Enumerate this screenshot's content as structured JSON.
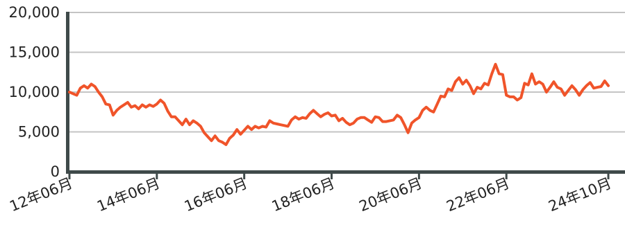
{
  "chart_data": {
    "type": "line",
    "title": "",
    "xlabel": "",
    "ylabel": "",
    "ylim": [
      0,
      20000
    ],
    "y_ticks": [
      {
        "value": 0,
        "label": "0"
      },
      {
        "value": 5000,
        "label": "5,000"
      },
      {
        "value": 10000,
        "label": "10,000"
      },
      {
        "value": 15000,
        "label": "15,000"
      },
      {
        "value": 20000,
        "label": "20,000"
      }
    ],
    "x_ticks": [
      {
        "month_index": 0,
        "label": "12年06月"
      },
      {
        "month_index": 24,
        "label": "14年06月"
      },
      {
        "month_index": 48,
        "label": "16年06月"
      },
      {
        "month_index": 72,
        "label": "18年06月"
      },
      {
        "month_index": 96,
        "label": "20年06月"
      },
      {
        "month_index": 120,
        "label": "22年06月"
      },
      {
        "month_index": 148,
        "label": "24年10月"
      }
    ],
    "grid": true,
    "series": [
      {
        "color": "#f0542a",
        "values": [
          10000,
          9800,
          9600,
          10500,
          10800,
          10500,
          11000,
          10700,
          10000,
          9400,
          8500,
          8400,
          7100,
          7700,
          8100,
          8400,
          8700,
          8100,
          8300,
          7900,
          8400,
          8100,
          8400,
          8200,
          8500,
          9000,
          8600,
          7600,
          6900,
          6900,
          6400,
          5900,
          6600,
          5900,
          6400,
          6100,
          5700,
          4900,
          4400,
          3900,
          4500,
          3900,
          3700,
          3400,
          4200,
          4600,
          5300,
          4700,
          5200,
          5700,
          5300,
          5700,
          5500,
          5700,
          5600,
          6400,
          6100,
          6000,
          5900,
          5800,
          5700,
          6500,
          6900,
          6600,
          6800,
          6700,
          7300,
          7700,
          7300,
          6900,
          7200,
          7400,
          7000,
          7100,
          6400,
          6700,
          6200,
          5900,
          6100,
          6600,
          6800,
          6800,
          6500,
          6200,
          6900,
          6800,
          6300,
          6300,
          6400,
          6500,
          7100,
          6800,
          5900,
          4900,
          6100,
          6500,
          6800,
          7700,
          8100,
          7700,
          7500,
          8500,
          9500,
          9400,
          10400,
          10200,
          11300,
          11800,
          11000,
          11500,
          10800,
          9800,
          10600,
          10400,
          11100,
          10900,
          12300,
          13500,
          12300,
          12200,
          9600,
          9400,
          9400,
          9000,
          9300,
          11100,
          10900,
          12300,
          11000,
          11300,
          11000,
          10000,
          10600,
          11300,
          10600,
          10400,
          9600,
          10200,
          10800,
          10300,
          9600,
          10300,
          10800,
          11200,
          10500,
          10600,
          10700,
          11400,
          10800
        ]
      }
    ]
  }
}
